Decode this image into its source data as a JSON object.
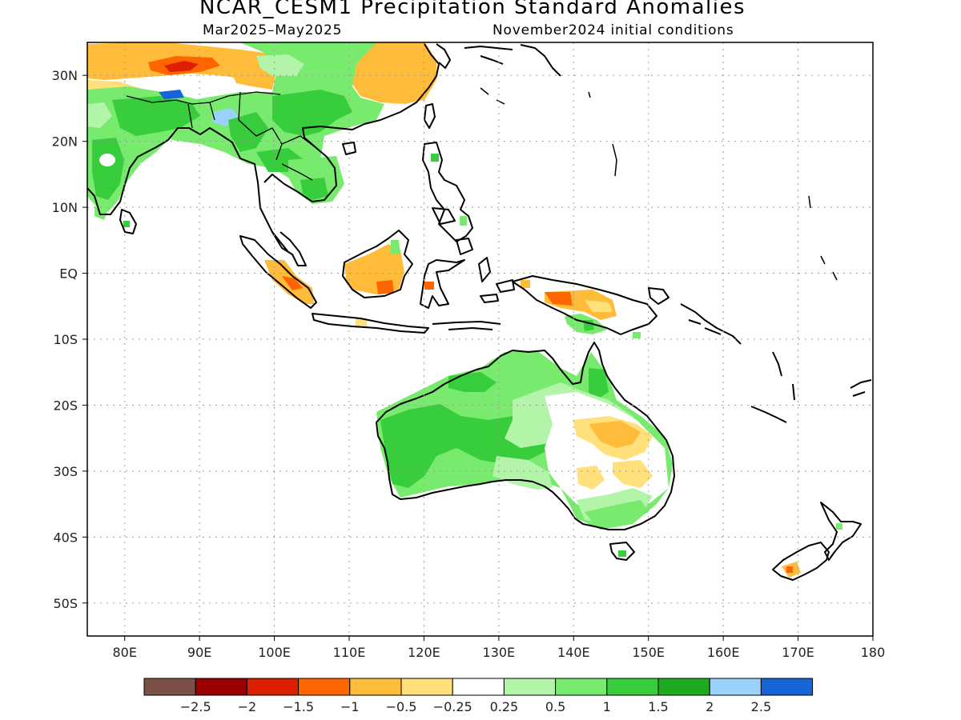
{
  "title": "NCAR_CESM1 Precipitation Standard Anomalies",
  "subtitle_left": "Mar2025–May2025",
  "subtitle_right": "November2024 initial conditions",
  "map": {
    "lon_range": [
      75,
      180
    ],
    "lat_range": [
      -55,
      35
    ],
    "lat_labels": [
      {
        "lat": 30,
        "text": "30N"
      },
      {
        "lat": 20,
        "text": "20N"
      },
      {
        "lat": 10,
        "text": "10N"
      },
      {
        "lat": 0,
        "text": "EQ"
      },
      {
        "lat": -10,
        "text": "10S"
      },
      {
        "lat": -20,
        "text": "20S"
      },
      {
        "lat": -30,
        "text": "30S"
      },
      {
        "lat": -40,
        "text": "40S"
      },
      {
        "lat": -50,
        "text": "50S"
      }
    ],
    "lon_labels": [
      {
        "lon": 80,
        "text": "80E"
      },
      {
        "lon": 90,
        "text": "90E"
      },
      {
        "lon": 100,
        "text": "100E"
      },
      {
        "lon": 110,
        "text": "110E"
      },
      {
        "lon": 120,
        "text": "120E"
      },
      {
        "lon": 130,
        "text": "130E"
      },
      {
        "lon": 140,
        "text": "140E"
      },
      {
        "lon": 150,
        "text": "150E"
      },
      {
        "lon": 160,
        "text": "160E"
      },
      {
        "lon": 170,
        "text": "170E"
      },
      {
        "lon": 180,
        "text": "180"
      }
    ]
  },
  "colorbar": {
    "colors": [
      "#7a5047",
      "#9b0000",
      "#dd1f00",
      "#ff6600",
      "#ffbb3a",
      "#ffe07a",
      "#ffffff",
      "#b2f5a8",
      "#78eb6e",
      "#37cd3c",
      "#1faa1f",
      "#99d2fa",
      "#1565d7"
    ],
    "labels": [
      "−2.5",
      "−2",
      "−1.5",
      "−1",
      "−0.5",
      "−0.25",
      "0.25",
      "0.5",
      "1",
      "1.5",
      "2",
      "2.5"
    ]
  }
}
